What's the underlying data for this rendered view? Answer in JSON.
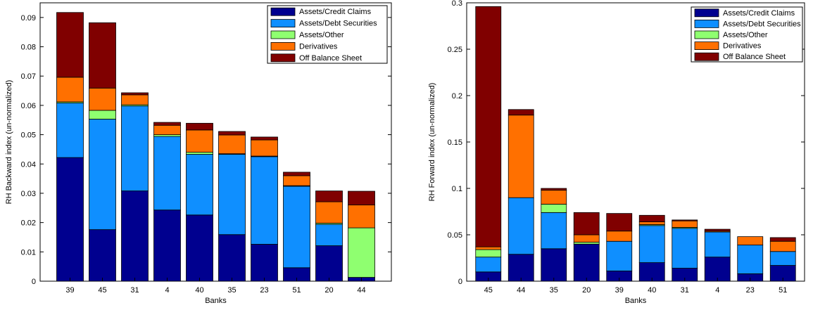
{
  "chart_data": [
    {
      "type": "bar",
      "stacked": true,
      "xlabel": "Banks",
      "ylabel": "RH Backward index (un-normalized)",
      "ylim": [
        0,
        0.095
      ],
      "yticks": [
        "0",
        "0.01",
        "0.02",
        "0.03",
        "0.04",
        "0.05",
        "0.06",
        "0.07",
        "0.08",
        "0.09"
      ],
      "ytick_values": [
        0,
        0.01,
        0.02,
        0.03,
        0.04,
        0.05,
        0.06,
        0.07,
        0.08,
        0.09
      ],
      "legend_position": "top-right",
      "categories": [
        "39",
        "45",
        "31",
        "4",
        "40",
        "35",
        "23",
        "51",
        "20",
        "44"
      ],
      "series": [
        {
          "name": "Assets/Credit Claims",
          "color": "#00008f",
          "values": [
            0.0422,
            0.0176,
            0.0308,
            0.0243,
            0.0226,
            0.0159,
            0.0126,
            0.0046,
            0.0121,
            0.0013
          ]
        },
        {
          "name": "Assets/Debt Securities",
          "color": "#0f8fff",
          "values": [
            0.0186,
            0.0377,
            0.029,
            0.0251,
            0.0207,
            0.0274,
            0.0299,
            0.0278,
            0.0073,
            0.0
          ]
        },
        {
          "name": "Assets/Other",
          "color": "#8fff70",
          "values": [
            0.0004,
            0.003,
            0.0004,
            0.0006,
            0.0007,
            0.0002,
            0.0002,
            0.0002,
            0.0004,
            0.0169
          ]
        },
        {
          "name": "Derivatives",
          "color": "#ff7000",
          "values": [
            0.0084,
            0.0076,
            0.0034,
            0.0032,
            0.0076,
            0.0064,
            0.0055,
            0.0034,
            0.0073,
            0.0078
          ]
        },
        {
          "name": "Off Balance Sheet",
          "color": "#800000",
          "values": [
            0.0221,
            0.0223,
            0.0007,
            0.001,
            0.0023,
            0.0012,
            0.001,
            0.0012,
            0.0037,
            0.0047
          ]
        }
      ]
    },
    {
      "type": "bar",
      "stacked": true,
      "xlabel": "Banks",
      "ylabel": "RH Forward index (un-normalized)",
      "ylim": [
        0,
        0.3
      ],
      "yticks": [
        "0",
        "0.05",
        "0.1",
        "0.15",
        "0.2",
        "0.25",
        "0.3"
      ],
      "ytick_values": [
        0,
        0.05,
        0.1,
        0.15,
        0.2,
        0.25,
        0.3
      ],
      "legend_position": "top-right",
      "categories": [
        "45",
        "44",
        "35",
        "20",
        "39",
        "40",
        "31",
        "4",
        "23",
        "51"
      ],
      "series": [
        {
          "name": "Assets/Credit Claims",
          "color": "#00008f",
          "values": [
            0.01,
            0.029,
            0.035,
            0.04,
            0.011,
            0.02,
            0.014,
            0.026,
            0.008,
            0.017
          ]
        },
        {
          "name": "Assets/Debt Securities",
          "color": "#0f8fff",
          "values": [
            0.016,
            0.061,
            0.039,
            0.0,
            0.032,
            0.04,
            0.043,
            0.027,
            0.031,
            0.015
          ]
        },
        {
          "name": "Assets/Other",
          "color": "#8fff70",
          "values": [
            0.008,
            0.0,
            0.009,
            0.002,
            0.0,
            0.001,
            0.001,
            0.0,
            0.0,
            0.0
          ]
        },
        {
          "name": "Derivatives",
          "color": "#ff7000",
          "values": [
            0.003,
            0.089,
            0.015,
            0.008,
            0.011,
            0.003,
            0.007,
            0.001,
            0.009,
            0.011
          ]
        },
        {
          "name": "Off Balance Sheet",
          "color": "#800000",
          "values": [
            0.259,
            0.006,
            0.002,
            0.024,
            0.019,
            0.007,
            0.001,
            0.002,
            0.0,
            0.004
          ]
        }
      ]
    }
  ]
}
